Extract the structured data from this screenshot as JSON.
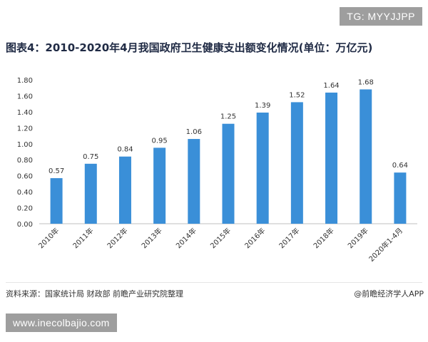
{
  "tg_badge": "TG: MYYJJPP",
  "url_badge": "www.inecolbajio.com",
  "source": "资料来源：国家统计局 财政部 前瞻产业研究院整理",
  "credit": "@前瞻经济学人APP",
  "colors": {
    "bar": "#3a8fd8",
    "axis": "#bfbfbf",
    "text": "#333333"
  },
  "chart_data": {
    "type": "bar",
    "title": "图表4：2010-2020年4月我国政府卫生健康支出额变化情况(单位：万亿元)",
    "categories": [
      "2010年",
      "2011年",
      "2012年",
      "2013年",
      "2014年",
      "2015年",
      "2016年",
      "2017年",
      "2018年",
      "2019年",
      "2020年1-4月"
    ],
    "values": [
      0.57,
      0.75,
      0.84,
      0.95,
      1.06,
      1.25,
      1.39,
      1.52,
      1.64,
      1.68,
      0.64
    ],
    "value_labels": [
      "0.57",
      "0.75",
      "0.84",
      "0.95",
      "1.06",
      "1.25",
      "1.39",
      "1.52",
      "1.64",
      "1.68",
      "0.64"
    ],
    "yticks": [
      "0.00",
      "0.20",
      "0.40",
      "0.60",
      "0.80",
      "1.00",
      "1.20",
      "1.40",
      "1.60",
      "1.80"
    ],
    "ylim": [
      0,
      1.8
    ],
    "xlabel": "",
    "ylabel": "",
    "grid": false,
    "legend": "none"
  }
}
